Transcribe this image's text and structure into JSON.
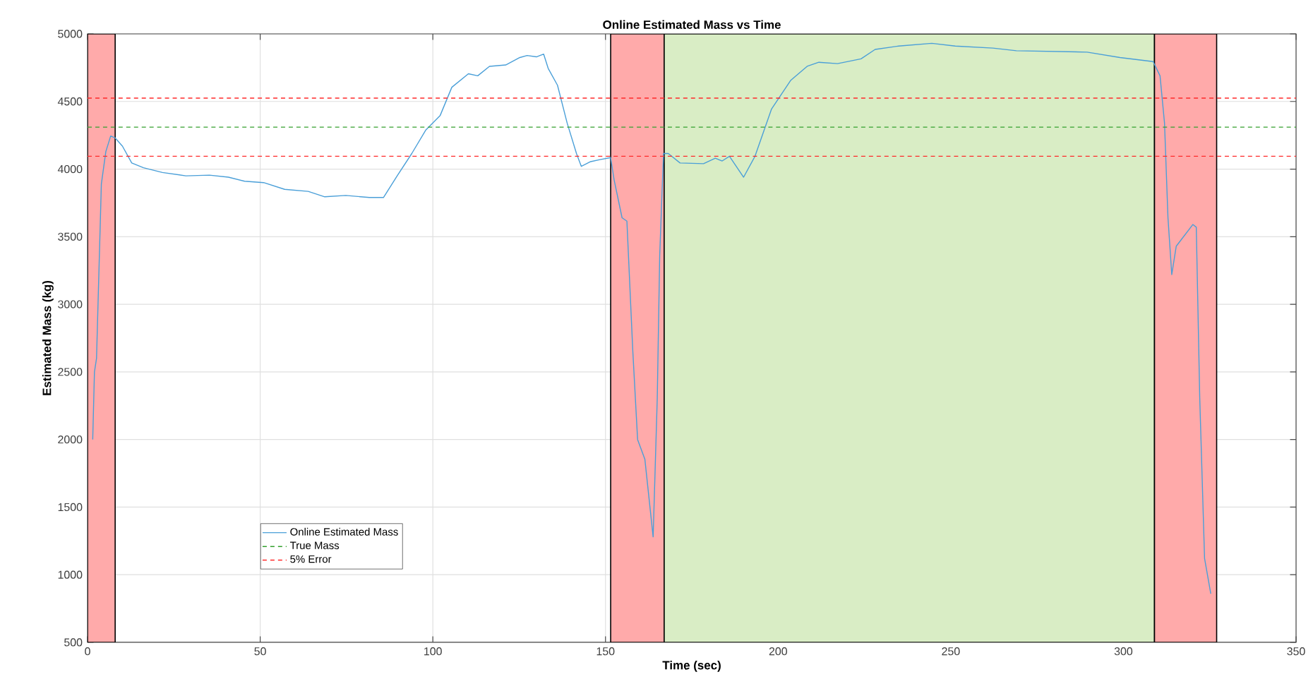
{
  "chart_data": {
    "type": "line",
    "title": "Online Estimated Mass vs Time",
    "xlabel": "Time (sec)",
    "ylabel": "Estimated Mass (kg)",
    "xlim": [
      0,
      350
    ],
    "ylim": [
      500,
      5000
    ],
    "xticks": [
      0,
      50,
      100,
      150,
      200,
      250,
      300,
      350
    ],
    "yticks": [
      500,
      1000,
      1500,
      2000,
      2500,
      3000,
      3500,
      4000,
      4500,
      5000
    ],
    "grid": true,
    "legend": "bottom left",
    "line_style": "solid",
    "series": [
      {
        "name": "Online Estimated Mass",
        "color": "#4a9fd8",
        "x": [
          1.5,
          2.0,
          2.6,
          4.0,
          5.3,
          6.7,
          8.0,
          10.1,
          12.8,
          16.2,
          21.7,
          28.5,
          35.3,
          40.8,
          45.5,
          51.0,
          57.1,
          63.9,
          68.7,
          74.8,
          81.6,
          85.7,
          89.8,
          93.9,
          98.0,
          102.1,
          105.5,
          110.3,
          113.0,
          116.4,
          121.1,
          125.2,
          127.3,
          130.0,
          132.1,
          133.4,
          136.1,
          138.9,
          141.6,
          143.0,
          145.7,
          148.4,
          151.5,
          152.5,
          154.8,
          156.2,
          157.9,
          159.3,
          161.4,
          163.8,
          165.0,
          165.7,
          166.8,
          168.2,
          171.6,
          178.4,
          181.8,
          183.8,
          185.9,
          190.0,
          193.3,
          198.1,
          203.6,
          208.4,
          211.8,
          217.2,
          224.0,
          228.1,
          234.9,
          244.5,
          251.3,
          262.2,
          269.0,
          289.5,
          299.0,
          308.6,
          310.6,
          311.9,
          312.9,
          314.0,
          315.3,
          320.1,
          321.1,
          322.1,
          323.5,
          325.3
        ],
        "values": [
          2000,
          2500,
          2600,
          3890,
          4130,
          4245,
          4230,
          4170,
          4045,
          4010,
          3975,
          3950,
          3955,
          3940,
          3910,
          3900,
          3850,
          3835,
          3795,
          3805,
          3790,
          3790,
          3955,
          4115,
          4290,
          4395,
          4605,
          4705,
          4690,
          4760,
          4770,
          4825,
          4840,
          4830,
          4850,
          4745,
          4620,
          4340,
          4115,
          4020,
          4055,
          4070,
          4085,
          3920,
          3640,
          3615,
          2660,
          2000,
          1855,
          1280,
          2310,
          3360,
          4115,
          4115,
          4045,
          4040,
          4080,
          4060,
          4095,
          3940,
          4095,
          4445,
          4655,
          4760,
          4790,
          4780,
          4815,
          4885,
          4910,
          4930,
          4910,
          4895,
          4875,
          4865,
          4825,
          4795,
          4690,
          4340,
          3640,
          3220,
          3430,
          3590,
          3570,
          2310,
          1120,
          860
        ]
      }
    ],
    "ref_lines": [
      {
        "axis": "y",
        "value": 4310,
        "label": "True Mass",
        "color": "#33a02c",
        "line_style": "dashed"
      },
      {
        "axis": "y",
        "value": 4525,
        "label": "5% Error",
        "color": "#ff2a2a",
        "line_style": "dashed"
      },
      {
        "axis": "y",
        "value": 4095,
        "color": "#ff2a2a",
        "line_style": "dashed"
      }
    ],
    "bands": [
      {
        "axis": "x",
        "from": 0,
        "to": 8,
        "color": "#ffaaaa"
      },
      {
        "axis": "x",
        "from": 151.5,
        "to": 167,
        "color": "#ffaaaa"
      },
      {
        "axis": "x",
        "from": 167,
        "to": 309,
        "color": "#d9edc5"
      },
      {
        "axis": "x",
        "from": 309,
        "to": 327,
        "color": "#ffaaaa"
      }
    ]
  }
}
